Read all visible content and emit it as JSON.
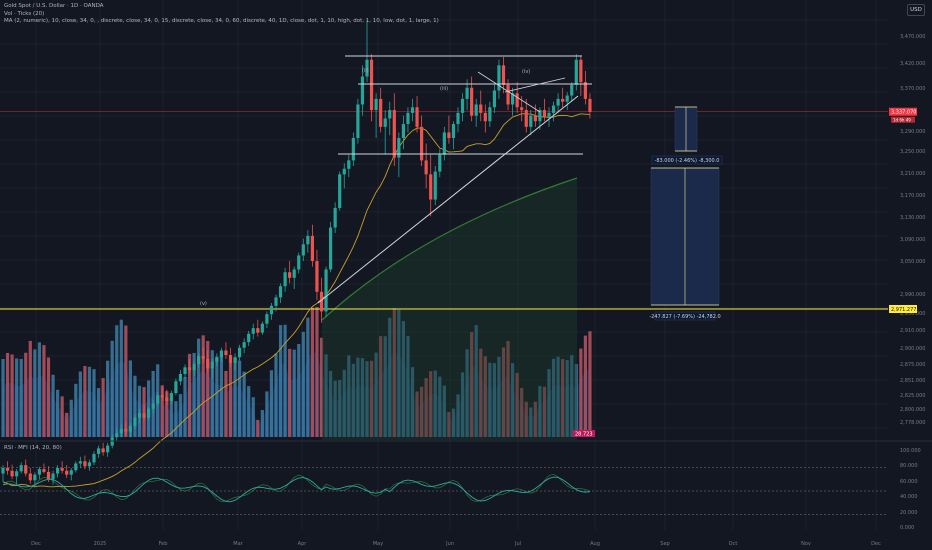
{
  "header": {
    "symbol_line": "Gold Spot / U.S. Dollar · 1D · OANDA",
    "vol_line": "Vol · Ticks (20)",
    "ma_line": "MA (2, numeric), 10, close, 34, 0, , discrete, close, 34, 0, 15, discrete, close, 34, 0, 60, discrete, 40, 1D, close, dot, 1, 10, high, dot, 1, 10, low, dot, 1, large, 1)",
    "currency": "USD"
  },
  "colors": {
    "background": "#131722",
    "grid": "#1e222d",
    "up": "#26a69a",
    "down": "#ef5350",
    "orange_ma": "#c8a02a",
    "green_ma": "#2e7d32",
    "white_lines": "#d1d4dc",
    "yellow_line": "#ffeb3b",
    "red_line": "#f23645",
    "proj_fill": "#1b2a4a",
    "proj_line": "#f2e9a0",
    "volume_up": "#3d7ea6",
    "volume_down": "#b85562",
    "rsi_line": "#2ea9a0",
    "mfi_fill": "#4caf50"
  },
  "chart_data": {
    "type": "candlestick",
    "title": "Gold Spot / U.S. Dollar · 1D · OANDA",
    "y_price_range": [
      2750,
      3510
    ],
    "price_ticks": [
      "3,470.000",
      "3,420.000",
      "3,370.000",
      "3,290.000",
      "3,250.000",
      "3,210.000",
      "3,170.000",
      "3,130.000",
      "3,090.000",
      "3,050.000",
      "2,990.000",
      "2,950.000",
      "2,910.000",
      "2,900.000",
      "2,875.000",
      "2,851.000",
      "2,825.000",
      "2,800.000",
      "2,778.000"
    ],
    "x_ticks": [
      "Dec",
      "2025",
      "Feb",
      "Mar",
      "Apr",
      "May",
      "Jun",
      "Jul",
      "Aug",
      "Sep",
      "Oct",
      "Nov",
      "Dec"
    ],
    "current_price_label": "3,337.070",
    "current_price_tag": "1d 6h 49",
    "yellow_level_label": "2,971.277",
    "rsi_ticks": [
      "100.000",
      "80.000",
      "60.000",
      "40.000",
      "20.000",
      "0.000"
    ],
    "rsi_levels": [
      80,
      50,
      20
    ],
    "annotations": {
      "proj_upper_label": "-83.000 (-2.46%) -8,300.0",
      "proj_lower_label": "-247.827 (-7.69%) -24,782.0",
      "volume_badge": "28.723",
      "small_labels": [
        "(ii)",
        "(iii)",
        "(iv)",
        "(v)"
      ]
    },
    "rsi_legend": "RSI · MFI (14, 20, 80)",
    "candles": [
      [
        2690,
        2705,
        2675,
        2700
      ],
      [
        2700,
        2712,
        2688,
        2695
      ],
      [
        2695,
        2706,
        2680,
        2685
      ],
      [
        2685,
        2698,
        2670,
        2694
      ],
      [
        2694,
        2710,
        2690,
        2705
      ],
      [
        2705,
        2715,
        2685,
        2690
      ],
      [
        2690,
        2700,
        2672,
        2678
      ],
      [
        2678,
        2692,
        2665,
        2688
      ],
      [
        2688,
        2702,
        2680,
        2698
      ],
      [
        2698,
        2708,
        2690,
        2693
      ],
      [
        2693,
        2703,
        2675,
        2680
      ],
      [
        2680,
        2695,
        2670,
        2690
      ],
      [
        2690,
        2705,
        2683,
        2700
      ],
      [
        2700,
        2712,
        2690,
        2695
      ],
      [
        2695,
        2705,
        2682,
        2688
      ],
      [
        2688,
        2700,
        2678,
        2696
      ],
      [
        2696,
        2712,
        2692,
        2708
      ],
      [
        2708,
        2720,
        2700,
        2712
      ],
      [
        2712,
        2722,
        2698,
        2703
      ],
      [
        2703,
        2715,
        2695,
        2710
      ],
      [
        2710,
        2730,
        2705,
        2725
      ],
      [
        2725,
        2740,
        2718,
        2735
      ],
      [
        2735,
        2745,
        2722,
        2728
      ],
      [
        2728,
        2745,
        2720,
        2740
      ],
      [
        2740,
        2760,
        2735,
        2755
      ],
      [
        2755,
        2770,
        2748,
        2762
      ],
      [
        2762,
        2778,
        2755,
        2770
      ],
      [
        2770,
        2782,
        2758,
        2765
      ],
      [
        2765,
        2780,
        2755,
        2775
      ],
      [
        2775,
        2795,
        2770,
        2790
      ],
      [
        2790,
        2805,
        2780,
        2798
      ],
      [
        2798,
        2812,
        2785,
        2790
      ],
      [
        2790,
        2810,
        2786,
        2806
      ],
      [
        2806,
        2822,
        2798,
        2815
      ],
      [
        2815,
        2835,
        2810,
        2830
      ],
      [
        2830,
        2845,
        2820,
        2826
      ],
      [
        2826,
        2840,
        2812,
        2820
      ],
      [
        2820,
        2838,
        2815,
        2834
      ],
      [
        2834,
        2860,
        2830,
        2855
      ],
      [
        2855,
        2875,
        2848,
        2868
      ],
      [
        2868,
        2885,
        2860,
        2880
      ],
      [
        2880,
        2895,
        2870,
        2875
      ],
      [
        2875,
        2890,
        2865,
        2886
      ],
      [
        2886,
        2905,
        2880,
        2900
      ],
      [
        2900,
        2915,
        2888,
        2895
      ],
      [
        2895,
        2910,
        2870,
        2878
      ],
      [
        2878,
        2895,
        2860,
        2890
      ],
      [
        2890,
        2905,
        2882,
        2898
      ],
      [
        2898,
        2915,
        2890,
        2910
      ],
      [
        2910,
        2925,
        2895,
        2902
      ],
      [
        2902,
        2915,
        2880,
        2888
      ],
      [
        2888,
        2905,
        2875,
        2898
      ],
      [
        2898,
        2920,
        2892,
        2915
      ],
      [
        2915,
        2932,
        2905,
        2925
      ],
      [
        2925,
        2945,
        2918,
        2940
      ],
      [
        2940,
        2958,
        2930,
        2950
      ],
      [
        2950,
        2965,
        2935,
        2942
      ],
      [
        2942,
        2962,
        2938,
        2958
      ],
      [
        2958,
        2980,
        2950,
        2975
      ],
      [
        2975,
        2995,
        2965,
        2990
      ],
      [
        2990,
        3010,
        2980,
        3005
      ],
      [
        3005,
        3030,
        2995,
        3025
      ],
      [
        3025,
        3058,
        3015,
        3050
      ],
      [
        3050,
        3070,
        3030,
        3040
      ],
      [
        3040,
        3060,
        3020,
        3055
      ],
      [
        3055,
        3085,
        3048,
        3080
      ],
      [
        3080,
        3110,
        3070,
        3100
      ],
      [
        3100,
        3125,
        3085,
        3115
      ],
      [
        3115,
        3135,
        3060,
        3070
      ],
      [
        3070,
        3090,
        3000,
        3015
      ],
      [
        3015,
        3040,
        2960,
        2980
      ],
      [
        2980,
        3060,
        2970,
        3055
      ],
      [
        3055,
        3140,
        3050,
        3130
      ],
      [
        3130,
        3175,
        3120,
        3165
      ],
      [
        3165,
        3230,
        3160,
        3225
      ],
      [
        3225,
        3245,
        3200,
        3235
      ],
      [
        3235,
        3260,
        3220,
        3250
      ],
      [
        3250,
        3300,
        3240,
        3290
      ],
      [
        3290,
        3360,
        3280,
        3350
      ],
      [
        3350,
        3420,
        3330,
        3400
      ],
      [
        3400,
        3500,
        3390,
        3430
      ],
      [
        3430,
        3440,
        3320,
        3340
      ],
      [
        3340,
        3370,
        3290,
        3360
      ],
      [
        3360,
        3380,
        3300,
        3310
      ],
      [
        3310,
        3340,
        3260,
        3325
      ],
      [
        3325,
        3355,
        3295,
        3340
      ],
      [
        3340,
        3370,
        3240,
        3255
      ],
      [
        3255,
        3300,
        3220,
        3290
      ],
      [
        3290,
        3330,
        3270,
        3315
      ],
      [
        3315,
        3345,
        3300,
        3335
      ],
      [
        3335,
        3360,
        3320,
        3345
      ],
      [
        3345,
        3365,
        3300,
        3310
      ],
      [
        3310,
        3330,
        3240,
        3250
      ],
      [
        3250,
        3280,
        3200,
        3225
      ],
      [
        3225,
        3260,
        3150,
        3180
      ],
      [
        3180,
        3240,
        3170,
        3230
      ],
      [
        3230,
        3270,
        3220,
        3260
      ],
      [
        3260,
        3310,
        3250,
        3300
      ],
      [
        3300,
        3330,
        3280,
        3290
      ],
      [
        3290,
        3320,
        3270,
        3315
      ],
      [
        3315,
        3345,
        3300,
        3335
      ],
      [
        3335,
        3370,
        3320,
        3360
      ],
      [
        3360,
        3395,
        3340,
        3380
      ],
      [
        3380,
        3400,
        3320,
        3330
      ],
      [
        3330,
        3360,
        3310,
        3350
      ],
      [
        3350,
        3375,
        3320,
        3335
      ],
      [
        3335,
        3350,
        3300,
        3320
      ],
      [
        3320,
        3355,
        3310,
        3345
      ],
      [
        3345,
        3385,
        3335,
        3375
      ],
      [
        3375,
        3430,
        3360,
        3420
      ],
      [
        3420,
        3435,
        3370,
        3385
      ],
      [
        3385,
        3395,
        3340,
        3350
      ],
      [
        3350,
        3380,
        3330,
        3370
      ],
      [
        3370,
        3390,
        3335,
        3345
      ],
      [
        3345,
        3365,
        3320,
        3340
      ],
      [
        3340,
        3360,
        3300,
        3310
      ],
      [
        3310,
        3340,
        3295,
        3330
      ],
      [
        3330,
        3350,
        3310,
        3320
      ],
      [
        3320,
        3345,
        3305,
        3340
      ],
      [
        3340,
        3360,
        3320,
        3328
      ],
      [
        3328,
        3345,
        3310,
        3335
      ],
      [
        3335,
        3355,
        3320,
        3348
      ],
      [
        3348,
        3370,
        3335,
        3360
      ],
      [
        3360,
        3380,
        3345,
        3355
      ],
      [
        3355,
        3372,
        3340,
        3366
      ],
      [
        3366,
        3390,
        3355,
        3385
      ],
      [
        3385,
        3440,
        3375,
        3430
      ],
      [
        3430,
        3438,
        3365,
        3390
      ],
      [
        3390,
        3410,
        3350,
        3360
      ],
      [
        3360,
        3370,
        3325,
        3337
      ]
    ]
  }
}
